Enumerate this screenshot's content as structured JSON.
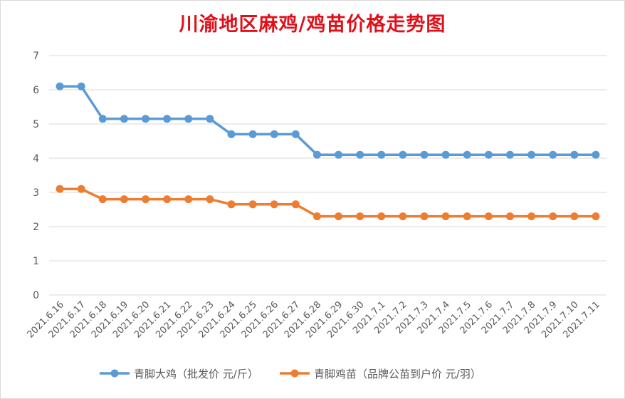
{
  "chart_data": {
    "type": "line",
    "title": "川渝地区麻鸡/鸡苗价格走势图",
    "xlabel": "",
    "ylabel": "",
    "ylim": [
      0,
      7
    ],
    "yticks": [
      "0",
      "1",
      "2",
      "3",
      "4",
      "5",
      "6",
      "7"
    ],
    "grid": true,
    "legend": "bottom",
    "categories": [
      "2021.6.16",
      "2021.6.17",
      "2021.6.18",
      "2021.6.19",
      "2021.6.20",
      "2021.6.21",
      "2021.6.22",
      "2021.6.23",
      "2021.6.24",
      "2021.6.25",
      "2021.6.26",
      "2021.6.27",
      "2021.6.28",
      "2021.6.29",
      "2021.6.30",
      "2021.7.1",
      "2021.7.2",
      "2021.7.3",
      "2021.7.4",
      "2021.7.5",
      "2021.7.6",
      "2021.7.7",
      "2021.7.8",
      "2021.7.9",
      "2021.7.10",
      "2021.7.11"
    ],
    "series": [
      {
        "name": "青脚大鸡（批发价 元/斤）",
        "color": "#5b9bd5",
        "values": [
          6.1,
          6.1,
          5.15,
          5.15,
          5.15,
          5.15,
          5.15,
          5.15,
          4.7,
          4.7,
          4.7,
          4.7,
          4.1,
          4.1,
          4.1,
          4.1,
          4.1,
          4.1,
          4.1,
          4.1,
          4.1,
          4.1,
          4.1,
          4.1,
          4.1,
          4.1
        ]
      },
      {
        "name": "青脚鸡苗（品牌公苗到户价 元/羽）",
        "color": "#ed7d31",
        "values": [
          3.1,
          3.1,
          2.8,
          2.8,
          2.8,
          2.8,
          2.8,
          2.8,
          2.65,
          2.65,
          2.65,
          2.65,
          2.3,
          2.3,
          2.3,
          2.3,
          2.3,
          2.3,
          2.3,
          2.3,
          2.3,
          2.3,
          2.3,
          2.3,
          2.3,
          2.3
        ]
      }
    ],
    "gridColor": "#d9d9d9",
    "axisTextColor": "#595959",
    "titleColor": "#e0101a"
  }
}
